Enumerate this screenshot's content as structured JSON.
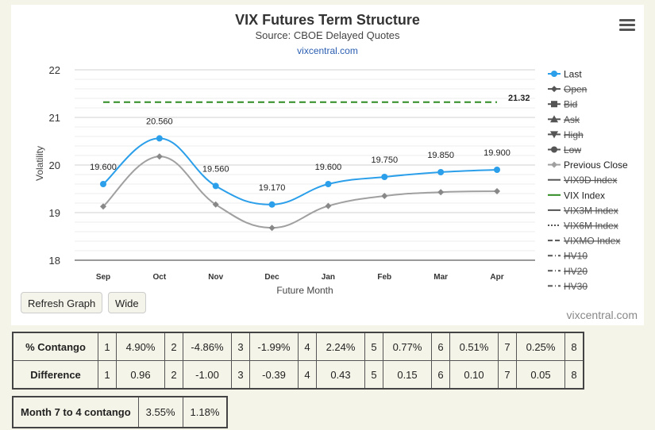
{
  "chart": {
    "title": "VIX Futures Term Structure",
    "subtitle": "Source: CBOE Delayed Quotes",
    "link": "vixcentral.com",
    "credit": "vixcentral.com"
  },
  "buttons": {
    "refresh": "Refresh Graph",
    "wide": "Wide"
  },
  "chart_data": {
    "type": "line",
    "title": "VIX Futures Term Structure",
    "subtitle": "Source: CBOE Delayed Quotes",
    "xlabel": "Future Month",
    "ylabel": "Volatility",
    "categories": [
      "Sep",
      "Oct",
      "Nov",
      "Dec",
      "Jan",
      "Feb",
      "Mar",
      "Apr"
    ],
    "ylim": [
      18,
      22
    ],
    "yticks": [
      "18",
      "19",
      "20",
      "21",
      "22"
    ],
    "grid": true,
    "legend_position": "right",
    "series": [
      {
        "name": "Last",
        "values": [
          19.6,
          20.56,
          19.56,
          19.17,
          19.6,
          19.75,
          19.85,
          19.9
        ],
        "labels": [
          "19.600",
          "20.560",
          "19.560",
          "19.170",
          "19.600",
          "19.750",
          "19.850",
          "19.900"
        ],
        "color": "#2b9fea"
      },
      {
        "name": "Previous Close",
        "values": [
          19.13,
          20.18,
          19.17,
          18.68,
          19.14,
          19.35,
          19.43,
          19.45
        ],
        "color": "#a0a0a0"
      },
      {
        "name": "VIX Index",
        "values": [
          21.32,
          21.32,
          21.32,
          21.32,
          21.32,
          21.32,
          21.32,
          21.32
        ],
        "end_label": "21.32",
        "color": "#2e8b22"
      }
    ],
    "legend": [
      {
        "name": "Last",
        "active": true,
        "symbol": "circle",
        "line": "solid",
        "color": "#2b9fea"
      },
      {
        "name": "Open",
        "active": false,
        "symbol": "diamond",
        "line": "solid",
        "color": "#555"
      },
      {
        "name": "Bid",
        "active": false,
        "symbol": "square",
        "line": "solid",
        "color": "#555"
      },
      {
        "name": "Ask",
        "active": false,
        "symbol": "triangle",
        "line": "solid",
        "color": "#555"
      },
      {
        "name": "High",
        "active": false,
        "symbol": "triangle-down",
        "line": "solid",
        "color": "#555"
      },
      {
        "name": "Low",
        "active": false,
        "symbol": "circle",
        "line": "solid",
        "color": "#555"
      },
      {
        "name": "Previous Close",
        "active": true,
        "symbol": "diamond",
        "line": "solid",
        "color": "#a0a0a0"
      },
      {
        "name": "VIX9D Index",
        "active": false,
        "symbol": "none",
        "line": "solid",
        "color": "#555"
      },
      {
        "name": "VIX Index",
        "active": true,
        "symbol": "none",
        "line": "solid",
        "color": "#2e8b22"
      },
      {
        "name": "VIX3M Index",
        "active": false,
        "symbol": "none",
        "line": "solid",
        "color": "#555"
      },
      {
        "name": "VIX6M Index",
        "active": false,
        "symbol": "none",
        "line": "dotted",
        "color": "#555"
      },
      {
        "name": "VIXMO Index",
        "active": false,
        "symbol": "none",
        "line": "dashed",
        "color": "#555"
      },
      {
        "name": "HV10",
        "active": false,
        "symbol": "none",
        "line": "dashdot",
        "color": "#555"
      },
      {
        "name": "HV20",
        "active": false,
        "symbol": "none",
        "line": "dashdot",
        "color": "#555"
      },
      {
        "name": "HV30",
        "active": false,
        "symbol": "none",
        "line": "dashdot",
        "color": "#555"
      }
    ]
  },
  "metrics": {
    "contango_label": "% Contango",
    "difference_label": "Difference",
    "contango": [
      {
        "n": "1",
        "v": "4.90%"
      },
      {
        "n": "2",
        "v": "-4.86%"
      },
      {
        "n": "3",
        "v": "-1.99%"
      },
      {
        "n": "4",
        "v": "2.24%"
      },
      {
        "n": "5",
        "v": "0.77%"
      },
      {
        "n": "6",
        "v": "0.51%"
      },
      {
        "n": "7",
        "v": "0.25%"
      },
      {
        "n": "8",
        "v": ""
      }
    ],
    "difference": [
      {
        "n": "1",
        "v": "0.96"
      },
      {
        "n": "2",
        "v": "-1.00"
      },
      {
        "n": "3",
        "v": "-0.39"
      },
      {
        "n": "4",
        "v": "0.43"
      },
      {
        "n": "5",
        "v": "0.15"
      },
      {
        "n": "6",
        "v": "0.10"
      },
      {
        "n": "7",
        "v": "0.05"
      },
      {
        "n": "8",
        "v": ""
      }
    ]
  },
  "summary": {
    "label": "Month 7 to 4 contango",
    "v1": "3.55%",
    "v2": "1.18%"
  }
}
